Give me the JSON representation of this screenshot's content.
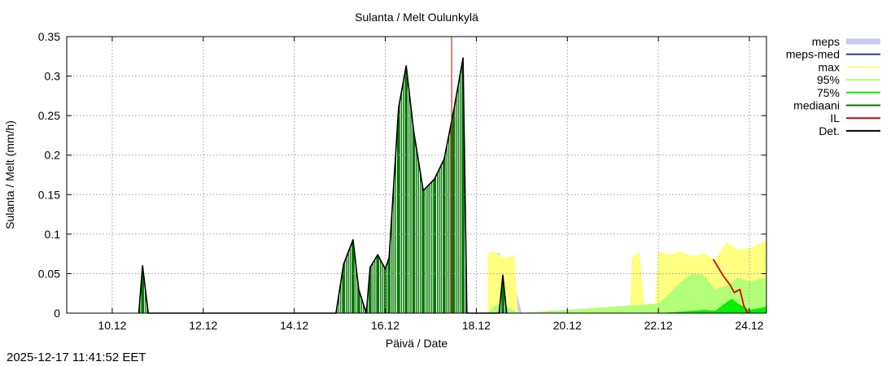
{
  "chart_data": {
    "type": "area",
    "title": "Sulanta / Melt  Oulunkylä",
    "xlabel": "Päivä / Date",
    "ylabel": "Sulanta / Melt (mm/h)",
    "xlim": [
      "2025-12-09 00:00",
      "2025-12-24 09:00"
    ],
    "ylim": [
      0,
      0.35
    ],
    "x_ticks": [
      "10.12",
      "12.12",
      "14.12",
      "16.12",
      "18.12",
      "20.12",
      "22.12",
      "24.12"
    ],
    "y_ticks": [
      "0",
      "0.05",
      "0.1",
      "0.15",
      "0.2",
      "0.25",
      "0.3",
      "0.35"
    ],
    "grid": true,
    "legend_position": "outside-right",
    "analysis_time": "2025-12-17 11:00",
    "series": [
      {
        "name": "meps",
        "kind": "band",
        "color": "#c8c8f5",
        "points": [
          [
            "2025-12-18 09:00",
            0.07
          ],
          [
            "2025-12-18 12:00",
            0.077
          ],
          [
            "2025-12-18 15:00",
            0.06
          ],
          [
            "2025-12-18 18:00",
            0.058
          ],
          [
            "2025-12-19 00:00",
            0.0
          ]
        ]
      },
      {
        "name": "meps-med",
        "kind": "line",
        "color": "#3333aa",
        "points": []
      },
      {
        "name": "max",
        "kind": "band",
        "color": "#ffff80",
        "points": [
          [
            "2025-12-18 06:00",
            0.075
          ],
          [
            "2025-12-18 09:00",
            0.078
          ],
          [
            "2025-12-18 12:00",
            0.074
          ],
          [
            "2025-12-18 15:00",
            0.07
          ],
          [
            "2025-12-18 18:00",
            0.072
          ],
          [
            "2025-12-18 20:00",
            0.074
          ],
          [
            "2025-12-18 22:00",
            0.0
          ],
          [
            "2025-12-21 09:00",
            0.0
          ],
          [
            "2025-12-21 10:00",
            0.07
          ],
          [
            "2025-12-21 14:00",
            0.078
          ],
          [
            "2025-12-21 17:00",
            0.0
          ],
          [
            "2025-12-21 22:00",
            0.0
          ],
          [
            "2025-12-22 00:00",
            0.078
          ],
          [
            "2025-12-22 06:00",
            0.074
          ],
          [
            "2025-12-22 12:00",
            0.078
          ],
          [
            "2025-12-22 18:00",
            0.072
          ],
          [
            "2025-12-23 00:00",
            0.076
          ],
          [
            "2025-12-23 06:00",
            0.068
          ],
          [
            "2025-12-23 12:00",
            0.09
          ],
          [
            "2025-12-23 18:00",
            0.08
          ],
          [
            "2025-12-24 00:00",
            0.082
          ],
          [
            "2025-12-24 09:00",
            0.092
          ]
        ]
      },
      {
        "name": "95%",
        "kind": "band",
        "color": "#b4ff78",
        "points": [
          [
            "2025-12-18 06:00",
            0.0
          ],
          [
            "2025-12-18 09:00",
            0.008
          ],
          [
            "2025-12-18 12:00",
            0.012
          ],
          [
            "2025-12-18 18:00",
            0.006
          ],
          [
            "2025-12-18 22:00",
            0.0
          ],
          [
            "2025-12-22 00:00",
            0.012
          ],
          [
            "2025-12-22 06:00",
            0.025
          ],
          [
            "2025-12-22 12:00",
            0.04
          ],
          [
            "2025-12-22 18:00",
            0.05
          ],
          [
            "2025-12-23 00:00",
            0.048
          ],
          [
            "2025-12-23 06:00",
            0.03
          ],
          [
            "2025-12-23 12:00",
            0.035
          ],
          [
            "2025-12-23 18:00",
            0.045
          ],
          [
            "2025-12-24 00:00",
            0.04
          ],
          [
            "2025-12-24 09:00",
            0.045
          ]
        ]
      },
      {
        "name": "75%",
        "kind": "band",
        "color": "#00ee00",
        "points": [
          [
            "2025-12-22 00:00",
            0.0
          ],
          [
            "2025-12-22 12:00",
            0.002
          ],
          [
            "2025-12-23 00:00",
            0.004
          ],
          [
            "2025-12-23 06:00",
            0.003
          ],
          [
            "2025-12-23 12:00",
            0.014
          ],
          [
            "2025-12-23 15:00",
            0.018
          ],
          [
            "2025-12-23 18:00",
            0.012
          ],
          [
            "2025-12-24 00:00",
            0.004
          ],
          [
            "2025-12-24 09:00",
            0.008
          ]
        ]
      },
      {
        "name": "mediaani",
        "kind": "band",
        "color": "#007700",
        "points": [
          [
            "2025-12-10 14:00",
            0.0
          ],
          [
            "2025-12-10 16:00",
            0.06
          ],
          [
            "2025-12-10 19:00",
            0.0
          ],
          [
            "2025-12-14 22:00",
            0.0
          ],
          [
            "2025-12-15 02:00",
            0.062
          ],
          [
            "2025-12-15 07:00",
            0.093
          ],
          [
            "2025-12-15 10:00",
            0.03
          ],
          [
            "2025-12-15 14:00",
            0.0
          ],
          [
            "2025-12-15 16:00",
            0.058
          ],
          [
            "2025-12-15 20:00",
            0.074
          ],
          [
            "2025-12-16 00:00",
            0.056
          ],
          [
            "2025-12-16 02:00",
            0.07
          ],
          [
            "2025-12-16 07:00",
            0.26
          ],
          [
            "2025-12-16 11:00",
            0.313
          ],
          [
            "2025-12-16 15:00",
            0.23
          ],
          [
            "2025-12-16 20:00",
            0.155
          ],
          [
            "2025-12-17 02:00",
            0.17
          ],
          [
            "2025-12-17 07:00",
            0.195
          ],
          [
            "2025-12-17 12:00",
            0.255
          ],
          [
            "2025-12-17 17:00",
            0.323
          ],
          [
            "2025-12-17 19:00",
            0.0
          ],
          [
            "2025-12-18 12:00",
            0.0
          ],
          [
            "2025-12-18 14:00",
            0.048
          ],
          [
            "2025-12-18 16:00",
            0.0
          ]
        ]
      },
      {
        "name": "IL",
        "kind": "line",
        "color": "#dd0000",
        "points": [
          [
            "2025-12-23 05:00",
            0.068
          ],
          [
            "2025-12-23 10:00",
            0.048
          ],
          [
            "2025-12-23 14:00",
            0.035
          ],
          [
            "2025-12-23 16:00",
            0.026
          ],
          [
            "2025-12-23 19:00",
            0.03
          ],
          [
            "2025-12-23 21:00",
            0.01
          ],
          [
            "2025-12-23 23:00",
            0.0
          ]
        ]
      },
      {
        "name": "Det.",
        "kind": "line",
        "color": "#000000",
        "points": [
          [
            "2025-12-10 14:00",
            0.0
          ],
          [
            "2025-12-10 16:00",
            0.06
          ],
          [
            "2025-12-10 19:00",
            0.0
          ],
          [
            "2025-12-14 22:00",
            0.0
          ],
          [
            "2025-12-15 02:00",
            0.062
          ],
          [
            "2025-12-15 07:00",
            0.093
          ],
          [
            "2025-12-15 10:00",
            0.03
          ],
          [
            "2025-12-15 14:00",
            0.0
          ],
          [
            "2025-12-15 16:00",
            0.058
          ],
          [
            "2025-12-15 20:00",
            0.074
          ],
          [
            "2025-12-16 00:00",
            0.056
          ],
          [
            "2025-12-16 02:00",
            0.07
          ],
          [
            "2025-12-16 07:00",
            0.26
          ],
          [
            "2025-12-16 11:00",
            0.313
          ],
          [
            "2025-12-16 15:00",
            0.23
          ],
          [
            "2025-12-16 20:00",
            0.155
          ],
          [
            "2025-12-17 02:00",
            0.17
          ],
          [
            "2025-12-17 07:00",
            0.195
          ],
          [
            "2025-12-17 12:00",
            0.255
          ],
          [
            "2025-12-17 17:00",
            0.323
          ],
          [
            "2025-12-17 19:00",
            0.0
          ],
          [
            "2025-12-18 12:00",
            0.0
          ],
          [
            "2025-12-18 14:00",
            0.048
          ],
          [
            "2025-12-18 16:00",
            0.0
          ]
        ]
      }
    ]
  },
  "footer": {
    "timestamp": "2025-12-17 11:41:52 EET"
  }
}
